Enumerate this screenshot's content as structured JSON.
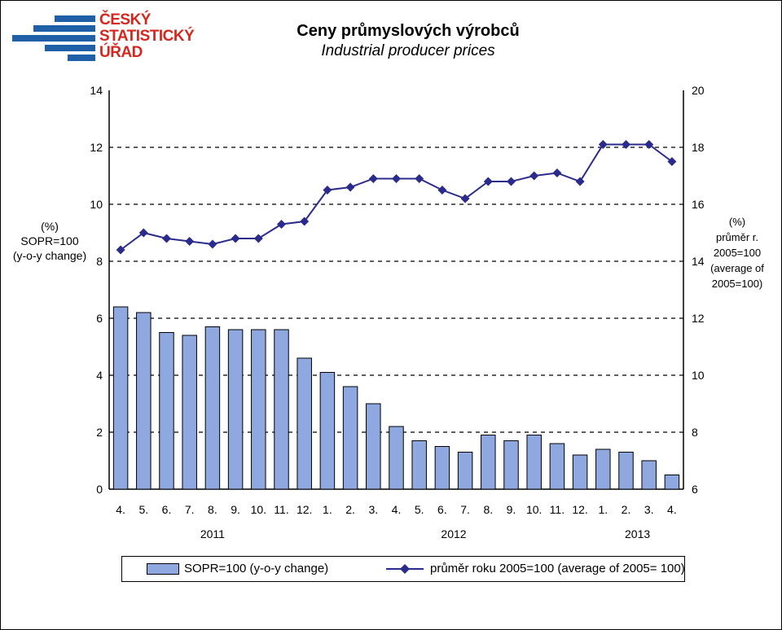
{
  "header": {
    "logo_lines": [
      "ČESKÝ",
      "STATISTICKÝ",
      "ÚŘAD"
    ],
    "title": "Ceny průmyslových výrobců",
    "subtitle": "Industrial producer prices"
  },
  "chart_data": {
    "type": "bar",
    "title": "Ceny průmyslových výrobců",
    "subtitle": "Industrial producer prices",
    "categories": [
      "4.",
      "5.",
      "6.",
      "7.",
      "8.",
      "9.",
      "10.",
      "11.",
      "12.",
      "1.",
      "2.",
      "3.",
      "4.",
      "5.",
      "6.",
      "7.",
      "8.",
      "9.",
      "10.",
      "11.",
      "12.",
      "1.",
      "2.",
      "3.",
      "4."
    ],
    "year_labels": [
      {
        "label": "2011",
        "start": 0,
        "end": 8
      },
      {
        "label": "2012",
        "start": 9,
        "end": 20
      },
      {
        "label": "2013",
        "start": 21,
        "end": 24
      }
    ],
    "series": [
      {
        "name": "SOPR=100 (y-o-y change)",
        "type": "bar",
        "axis": "left",
        "color": "#8fa8e0",
        "values": [
          6.4,
          6.2,
          5.5,
          5.4,
          5.7,
          5.6,
          5.6,
          5.6,
          4.6,
          4.1,
          3.6,
          3.0,
          2.2,
          1.7,
          1.5,
          1.3,
          1.9,
          1.7,
          1.9,
          1.6,
          1.2,
          1.4,
          1.3,
          1.0,
          0.5
        ]
      },
      {
        "name": "průměr roku 2005=100 (average of 2005= 100)",
        "type": "line",
        "axis": "right",
        "color": "#2b2b8c",
        "marker": "diamond",
        "values": [
          14.4,
          15.0,
          14.8,
          14.7,
          14.6,
          14.8,
          14.8,
          15.3,
          15.4,
          16.5,
          16.6,
          16.9,
          16.9,
          16.9,
          16.5,
          16.2,
          16.8,
          16.8,
          17.0,
          17.1,
          16.8,
          18.1,
          18.1,
          18.1,
          17.5
        ]
      }
    ],
    "y_left": {
      "label_lines": [
        "(%)",
        "SOPR=100",
        "(y-o-y change)"
      ],
      "range": [
        0,
        14
      ],
      "ticks": [
        "0",
        "2",
        "4",
        "6",
        "8",
        "10",
        "12",
        "14"
      ]
    },
    "y_right": {
      "label_lines": [
        "(%)",
        "průměr r.",
        "2005=100",
        "(average of",
        "2005=100)"
      ],
      "range": [
        6,
        20
      ],
      "ticks": [
        "6",
        "8",
        "10",
        "12",
        "14",
        "16",
        "18",
        "20"
      ]
    },
    "grid": "dashed horizontal",
    "legend_position": "bottom"
  },
  "legend": {
    "bar_label": "SOPR=100 (y-o-y change)",
    "line_label": "průměr roku 2005=100 (average of 2005= 100)"
  }
}
